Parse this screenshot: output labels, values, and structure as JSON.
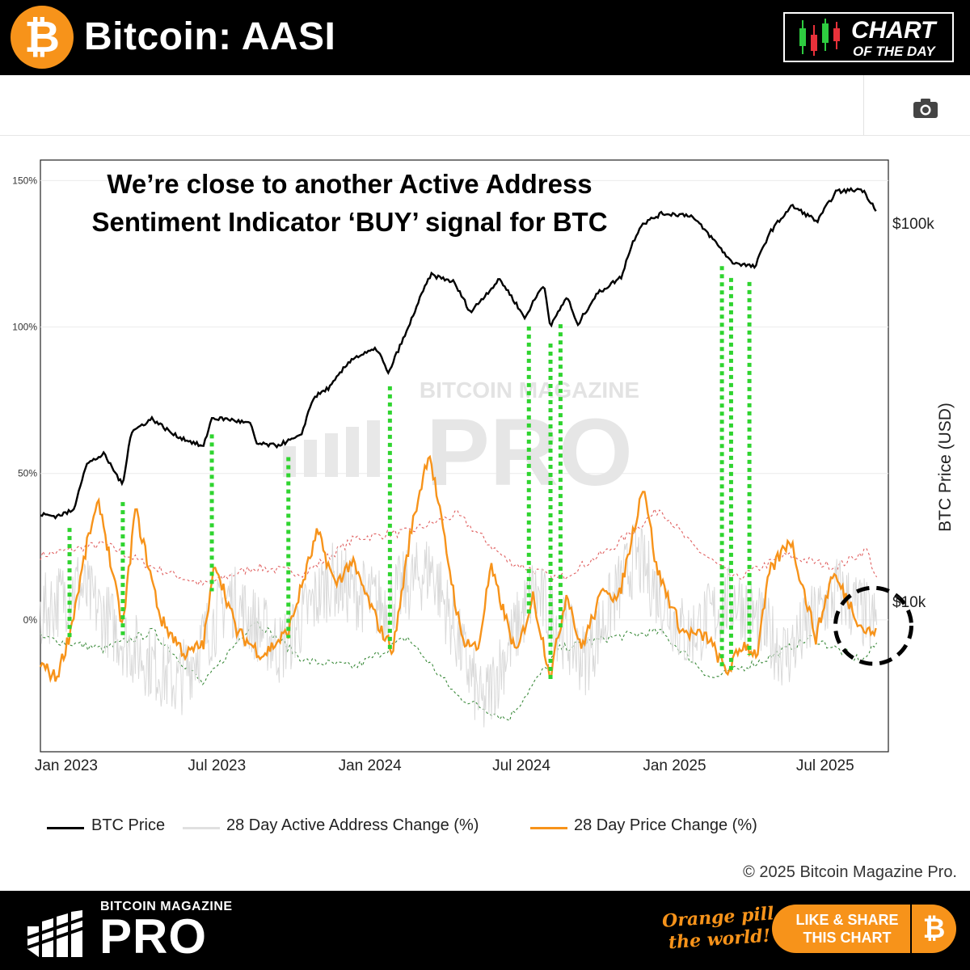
{
  "header": {
    "title": "Bitcoin: AASI",
    "badge_line1": "CHART",
    "badge_line2": "OF THE DAY"
  },
  "toolbar": {
    "camera_icon": "camera-icon"
  },
  "annotation": {
    "headline_line1": "We’re close to another Active Address",
    "headline_line2": "Sentiment Indicator ‘BUY’ signal for BTC"
  },
  "chart_data": {
    "type": "line",
    "x_ticks": [
      "Jan 2023",
      "Jul 2023",
      "Jan 2024",
      "Jul 2024",
      "Jan 2025",
      "Jul 2025"
    ],
    "x_tick_dates": [
      "2023-01-01",
      "2023-07-01",
      "2024-01-01",
      "2024-07-01",
      "2025-01-01",
      "2025-07-01"
    ],
    "x_range": [
      "2022-12-01",
      "2025-09-15"
    ],
    "y_left_ticks": [
      "150%",
      "100%",
      "50%",
      "0%"
    ],
    "y_left_tick_values": [
      150,
      100,
      50,
      0
    ],
    "y_left_range": [
      -45,
      157
    ],
    "y_right_label": "BTC Price (USD)",
    "y_right_ticks": [
      "$100k",
      "$10k"
    ],
    "y_right_scale": "log",
    "legend_position": "bottom",
    "grid": true,
    "series": [
      {
        "name": "BTC Price",
        "axis": "right",
        "color": "#000000",
        "points": [
          [
            "2022-12-01",
            17000
          ],
          [
            "2022-12-20",
            16800
          ],
          [
            "2023-01-10",
            17400
          ],
          [
            "2023-01-25",
            23000
          ],
          [
            "2023-02-15",
            24500
          ],
          [
            "2023-03-10",
            20200
          ],
          [
            "2023-03-20",
            28000
          ],
          [
            "2023-04-14",
            30400
          ],
          [
            "2023-05-10",
            27600
          ],
          [
            "2023-06-15",
            25600
          ],
          [
            "2023-06-25",
            30500
          ],
          [
            "2023-07-15",
            30300
          ],
          [
            "2023-08-10",
            29500
          ],
          [
            "2023-08-18",
            26100
          ],
          [
            "2023-09-10",
            25800
          ],
          [
            "2023-10-10",
            27300
          ],
          [
            "2023-10-25",
            34500
          ],
          [
            "2023-11-15",
            37000
          ],
          [
            "2023-12-10",
            43800
          ],
          [
            "2024-01-10",
            46500
          ],
          [
            "2024-01-23",
            39800
          ],
          [
            "2024-02-15",
            52000
          ],
          [
            "2024-03-05",
            66000
          ],
          [
            "2024-03-14",
            73000
          ],
          [
            "2024-04-10",
            70000
          ],
          [
            "2024-05-01",
            58000
          ],
          [
            "2024-06-05",
            71000
          ],
          [
            "2024-07-05",
            56000
          ],
          [
            "2024-07-28",
            69000
          ],
          [
            "2024-08-05",
            53000
          ],
          [
            "2024-08-25",
            64000
          ],
          [
            "2024-09-06",
            53500
          ],
          [
            "2024-09-30",
            65000
          ],
          [
            "2024-10-29",
            72000
          ],
          [
            "2024-11-12",
            89000
          ],
          [
            "2024-11-22",
            99000
          ],
          [
            "2024-12-17",
            106000
          ],
          [
            "2025-01-20",
            105000
          ],
          [
            "2025-02-25",
            86000
          ],
          [
            "2025-03-10",
            79000
          ],
          [
            "2025-04-08",
            76500
          ],
          [
            "2025-04-25",
            94000
          ],
          [
            "2025-05-22",
            111000
          ],
          [
            "2025-06-22",
            101000
          ],
          [
            "2025-07-14",
            121000
          ],
          [
            "2025-08-14",
            123000
          ],
          [
            "2025-09-01",
            108000
          ]
        ]
      },
      {
        "name": "28 Day Active Address Change (%)",
        "axis": "left",
        "color": "#d9d9d9",
        "points": [
          [
            "2022-12-01",
            2
          ],
          [
            "2023-01-15",
            12
          ],
          [
            "2023-03-15",
            -8
          ],
          [
            "2023-05-15",
            -22
          ],
          [
            "2023-07-15",
            8
          ],
          [
            "2023-09-15",
            -10
          ],
          [
            "2023-11-15",
            14
          ],
          [
            "2024-01-15",
            5
          ],
          [
            "2024-03-15",
            18
          ],
          [
            "2024-05-15",
            -30
          ],
          [
            "2024-07-15",
            10
          ],
          [
            "2024-09-15",
            -14
          ],
          [
            "2024-11-15",
            22
          ],
          [
            "2025-01-15",
            -6
          ],
          [
            "2025-03-15",
            8
          ],
          [
            "2025-05-15",
            -12
          ],
          [
            "2025-07-15",
            10
          ],
          [
            "2025-09-01",
            -2
          ]
        ]
      },
      {
        "name": "28 Day Price Change (%)",
        "axis": "left",
        "color": "#f7931a",
        "points": [
          [
            "2022-12-01",
            -15
          ],
          [
            "2022-12-20",
            -20
          ],
          [
            "2023-01-05",
            -5
          ],
          [
            "2023-01-29",
            30
          ],
          [
            "2023-02-10",
            40
          ],
          [
            "2023-03-10",
            -3
          ],
          [
            "2023-03-25",
            38
          ],
          [
            "2023-04-25",
            0
          ],
          [
            "2023-05-25",
            -12
          ],
          [
            "2023-06-15",
            -8
          ],
          [
            "2023-06-29",
            20
          ],
          [
            "2023-07-25",
            -4
          ],
          [
            "2023-08-25",
            -12
          ],
          [
            "2023-09-25",
            -4
          ],
          [
            "2023-10-30",
            30
          ],
          [
            "2023-11-20",
            12
          ],
          [
            "2023-12-10",
            20
          ],
          [
            "2024-01-15",
            -4
          ],
          [
            "2024-01-29",
            -10
          ],
          [
            "2024-02-19",
            30
          ],
          [
            "2024-03-12",
            58
          ],
          [
            "2024-04-20",
            -6
          ],
          [
            "2024-05-10",
            -10
          ],
          [
            "2024-05-25",
            18
          ],
          [
            "2024-06-25",
            -12
          ],
          [
            "2024-07-15",
            8
          ],
          [
            "2024-08-05",
            -19
          ],
          [
            "2024-08-25",
            10
          ],
          [
            "2024-09-10",
            -10
          ],
          [
            "2024-10-10",
            12
          ],
          [
            "2024-10-25",
            6
          ],
          [
            "2024-11-25",
            47
          ],
          [
            "2024-12-10",
            18
          ],
          [
            "2025-01-10",
            -4
          ],
          [
            "2025-02-10",
            -6
          ],
          [
            "2025-03-05",
            -18
          ],
          [
            "2025-03-25",
            -8
          ],
          [
            "2025-04-10",
            -12
          ],
          [
            "2025-04-25",
            16
          ],
          [
            "2025-05-20",
            28
          ],
          [
            "2025-06-20",
            -6
          ],
          [
            "2025-07-10",
            16
          ],
          [
            "2025-07-30",
            6
          ],
          [
            "2025-08-15",
            -3
          ],
          [
            "2025-09-01",
            -5
          ]
        ]
      },
      {
        "name": "",
        "axis": "left",
        "color": "#e06060",
        "dashed": true,
        "points": [
          [
            "2022-12-01",
            22
          ],
          [
            "2023-02-15",
            26
          ],
          [
            "2023-04-15",
            18
          ],
          [
            "2023-06-15",
            12
          ],
          [
            "2023-08-15",
            18
          ],
          [
            "2023-10-15",
            16
          ],
          [
            "2023-12-15",
            28
          ],
          [
            "2024-02-15",
            30
          ],
          [
            "2024-04-15",
            36
          ],
          [
            "2024-06-15",
            20
          ],
          [
            "2024-08-15",
            14
          ],
          [
            "2024-10-15",
            24
          ],
          [
            "2024-12-15",
            38
          ],
          [
            "2025-01-20",
            26
          ],
          [
            "2025-03-15",
            14
          ],
          [
            "2025-05-15",
            22
          ],
          [
            "2025-07-15",
            18
          ],
          [
            "2025-08-20",
            24
          ],
          [
            "2025-09-01",
            14
          ]
        ]
      },
      {
        "name": "",
        "axis": "left",
        "color": "#3a8a3a",
        "dashed": true,
        "points": [
          [
            "2022-12-01",
            -6
          ],
          [
            "2023-02-15",
            -10
          ],
          [
            "2023-04-15",
            -4
          ],
          [
            "2023-06-15",
            -22
          ],
          [
            "2023-08-15",
            0
          ],
          [
            "2023-10-15",
            -14
          ],
          [
            "2023-12-15",
            -16
          ],
          [
            "2024-02-15",
            -6
          ],
          [
            "2024-04-15",
            -26
          ],
          [
            "2024-06-15",
            -34
          ],
          [
            "2024-08-15",
            -10
          ],
          [
            "2024-10-15",
            -6
          ],
          [
            "2024-12-15",
            -4
          ],
          [
            "2025-02-15",
            -20
          ],
          [
            "2025-04-15",
            -14
          ],
          [
            "2025-06-15",
            -6
          ],
          [
            "2025-08-15",
            -14
          ],
          [
            "2025-09-01",
            -8
          ]
        ]
      }
    ],
    "buy_signal_dates": [
      "2023-01-05",
      "2023-03-10",
      "2023-06-25",
      "2023-09-25",
      "2024-01-25",
      "2024-07-10",
      "2024-08-05",
      "2024-08-17",
      "2025-02-27",
      "2025-03-10",
      "2025-04-01"
    ],
    "highlight": {
      "date": "2025-08-28",
      "value": -2
    },
    "watermark_line1": "BITCOIN MAGAZINE",
    "watermark_line2": "PRO"
  },
  "legend": [
    {
      "label": "BTC Price",
      "color": "#000000"
    },
    {
      "label": "28 Day Active Address Change (%)",
      "color": "#e0e0e0"
    },
    {
      "label": "28 Day Price Change (%)",
      "color": "#f7931a"
    }
  ],
  "copyright": "© 2025 Bitcoin Magazine Pro.",
  "footer": {
    "brand_top": "BITCOIN MAGAZINE",
    "brand": "PRO",
    "slogan_line1": "Orange pill",
    "slogan_line2": "the world!",
    "share_line1": "LIKE & SHARE",
    "share_line2": "THIS CHART"
  }
}
